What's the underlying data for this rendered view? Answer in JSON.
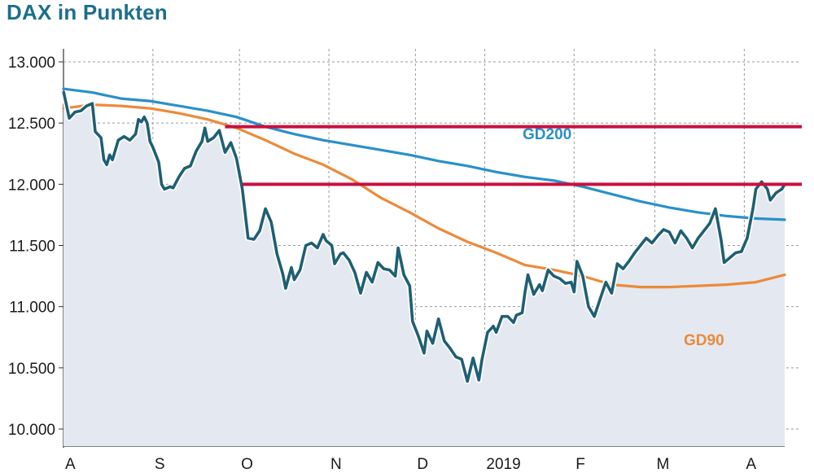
{
  "title": "DAX in Punkten",
  "chart_data": {
    "type": "line",
    "title": "DAX in Punkten",
    "ylim": [
      10000,
      13000
    ],
    "y_ticks": [
      "13.000",
      "12.500",
      "12.000",
      "11.500",
      "11.000",
      "10.500",
      "10.000"
    ],
    "y_tick_values": [
      13000,
      12500,
      12000,
      11500,
      11000,
      10500,
      10000
    ],
    "x_ticks": [
      "A",
      "S",
      "O",
      "N",
      "D",
      "2019",
      "F",
      "M",
      "A"
    ],
    "x_range_days": [
      0,
      250
    ],
    "x_tick_days": [
      0,
      31,
      61,
      92,
      122,
      146,
      177,
      205,
      236
    ],
    "grid": true,
    "series": [
      {
        "name": "",
        "color": "#1f5f73",
        "fill": "#e4e9f1",
        "points": [
          [
            0,
            12760
          ],
          [
            2,
            12540
          ],
          [
            4,
            12590
          ],
          [
            6,
            12600
          ],
          [
            8,
            12640
          ],
          [
            10,
            12660
          ],
          [
            11,
            12430
          ],
          [
            13,
            12380
          ],
          [
            14,
            12200
          ],
          [
            15,
            12160
          ],
          [
            16,
            12240
          ],
          [
            17,
            12200
          ],
          [
            19,
            12360
          ],
          [
            21,
            12390
          ],
          [
            23,
            12360
          ],
          [
            25,
            12410
          ],
          [
            26,
            12530
          ],
          [
            27,
            12510
          ],
          [
            28,
            12550
          ],
          [
            29,
            12500
          ],
          [
            30,
            12350
          ],
          [
            31,
            12300
          ],
          [
            33,
            12180
          ],
          [
            34,
            12000
          ],
          [
            35,
            11960
          ],
          [
            37,
            11980
          ],
          [
            38,
            11970
          ],
          [
            40,
            12060
          ],
          [
            42,
            12130
          ],
          [
            44,
            12150
          ],
          [
            46,
            12270
          ],
          [
            48,
            12350
          ],
          [
            49,
            12460
          ],
          [
            50,
            12350
          ],
          [
            52,
            12380
          ],
          [
            54,
            12440
          ],
          [
            56,
            12260
          ],
          [
            58,
            12340
          ],
          [
            60,
            12210
          ],
          [
            62,
            11960
          ],
          [
            64,
            11560
          ],
          [
            66,
            11550
          ],
          [
            68,
            11620
          ],
          [
            70,
            11800
          ],
          [
            72,
            11690
          ],
          [
            74,
            11430
          ],
          [
            76,
            11270
          ],
          [
            77,
            11150
          ],
          [
            79,
            11320
          ],
          [
            80,
            11220
          ],
          [
            82,
            11300
          ],
          [
            84,
            11500
          ],
          [
            86,
            11520
          ],
          [
            88,
            11480
          ],
          [
            90,
            11590
          ],
          [
            91,
            11540
          ],
          [
            93,
            11500
          ],
          [
            94,
            11350
          ],
          [
            96,
            11430
          ],
          [
            97,
            11440
          ],
          [
            99,
            11380
          ],
          [
            101,
            11280
          ],
          [
            103,
            11110
          ],
          [
            105,
            11280
          ],
          [
            107,
            11200
          ],
          [
            109,
            11360
          ],
          [
            111,
            11310
          ],
          [
            113,
            11300
          ],
          [
            115,
            11250
          ],
          [
            116,
            11480
          ],
          [
            118,
            11260
          ],
          [
            120,
            11170
          ],
          [
            121,
            10880
          ],
          [
            123,
            10760
          ],
          [
            125,
            10620
          ],
          [
            126,
            10800
          ],
          [
            128,
            10700
          ],
          [
            130,
            10900
          ],
          [
            132,
            10720
          ],
          [
            134,
            10660
          ],
          [
            136,
            10590
          ],
          [
            138,
            10570
          ],
          [
            140,
            10390
          ],
          [
            142,
            10580
          ],
          [
            144,
            10400
          ],
          [
            145,
            10560
          ],
          [
            147,
            10790
          ],
          [
            149,
            10840
          ],
          [
            150,
            10790
          ],
          [
            152,
            10920
          ],
          [
            154,
            10920
          ],
          [
            156,
            10870
          ],
          [
            157,
            10930
          ],
          [
            159,
            10950
          ],
          [
            160,
            11120
          ],
          [
            161,
            11260
          ],
          [
            163,
            11100
          ],
          [
            165,
            11180
          ],
          [
            166,
            11130
          ],
          [
            168,
            11300
          ],
          [
            170,
            11250
          ],
          [
            172,
            11230
          ],
          [
            174,
            11190
          ],
          [
            176,
            11200
          ],
          [
            177,
            11120
          ],
          [
            178,
            11370
          ],
          [
            180,
            11250
          ],
          [
            182,
            11000
          ],
          [
            184,
            10920
          ],
          [
            186,
            11060
          ],
          [
            188,
            11200
          ],
          [
            190,
            11110
          ],
          [
            192,
            11350
          ],
          [
            194,
            11310
          ],
          [
            196,
            11370
          ],
          [
            198,
            11440
          ],
          [
            200,
            11500
          ],
          [
            202,
            11560
          ],
          [
            204,
            11520
          ],
          [
            206,
            11580
          ],
          [
            208,
            11630
          ],
          [
            210,
            11610
          ],
          [
            212,
            11520
          ],
          [
            214,
            11620
          ],
          [
            216,
            11560
          ],
          [
            218,
            11480
          ],
          [
            220,
            11560
          ],
          [
            222,
            11620
          ],
          [
            224,
            11680
          ],
          [
            226,
            11800
          ],
          [
            228,
            11540
          ],
          [
            229,
            11360
          ],
          [
            231,
            11400
          ],
          [
            233,
            11440
          ],
          [
            235,
            11450
          ],
          [
            237,
            11560
          ],
          [
            239,
            11800
          ],
          [
            240,
            11960
          ],
          [
            242,
            12020
          ],
          [
            244,
            11960
          ],
          [
            245,
            11870
          ],
          [
            247,
            11930
          ],
          [
            249,
            11960
          ],
          [
            250,
            12000
          ]
        ]
      },
      {
        "name": "GD200",
        "color": "#2a90c8",
        "points": [
          [
            0,
            12780
          ],
          [
            10,
            12750
          ],
          [
            20,
            12700
          ],
          [
            30,
            12680
          ],
          [
            40,
            12640
          ],
          [
            50,
            12600
          ],
          [
            60,
            12550
          ],
          [
            70,
            12470
          ],
          [
            80,
            12410
          ],
          [
            90,
            12360
          ],
          [
            100,
            12320
          ],
          [
            110,
            12280
          ],
          [
            120,
            12240
          ],
          [
            130,
            12190
          ],
          [
            140,
            12150
          ],
          [
            150,
            12100
          ],
          [
            160,
            12060
          ],
          [
            170,
            12030
          ],
          [
            180,
            11980
          ],
          [
            190,
            11920
          ],
          [
            200,
            11860
          ],
          [
            210,
            11810
          ],
          [
            220,
            11770
          ],
          [
            230,
            11740
          ],
          [
            240,
            11720
          ],
          [
            250,
            11710
          ]
        ]
      },
      {
        "name": "GD90",
        "color": "#ec8a3a",
        "points": [
          [
            0,
            12620
          ],
          [
            10,
            12650
          ],
          [
            20,
            12640
          ],
          [
            30,
            12620
          ],
          [
            40,
            12580
          ],
          [
            50,
            12530
          ],
          [
            60,
            12460
          ],
          [
            70,
            12360
          ],
          [
            80,
            12250
          ],
          [
            90,
            12160
          ],
          [
            100,
            12040
          ],
          [
            110,
            11890
          ],
          [
            120,
            11770
          ],
          [
            130,
            11640
          ],
          [
            140,
            11530
          ],
          [
            150,
            11440
          ],
          [
            160,
            11340
          ],
          [
            170,
            11300
          ],
          [
            180,
            11250
          ],
          [
            190,
            11180
          ],
          [
            200,
            11160
          ],
          [
            210,
            11160
          ],
          [
            220,
            11170
          ],
          [
            230,
            11180
          ],
          [
            240,
            11200
          ],
          [
            250,
            11260
          ]
        ]
      }
    ],
    "annotations": [
      {
        "text": "GD200",
        "color": "#2a90c8"
      },
      {
        "text": "GD90",
        "color": "#ec8a3a"
      }
    ],
    "reference_lines": [
      {
        "y": 12470,
        "x_start_day": 56,
        "color": "#c8103e"
      },
      {
        "y": 12000,
        "x_start_day": 62,
        "color": "#c8103e"
      }
    ]
  }
}
